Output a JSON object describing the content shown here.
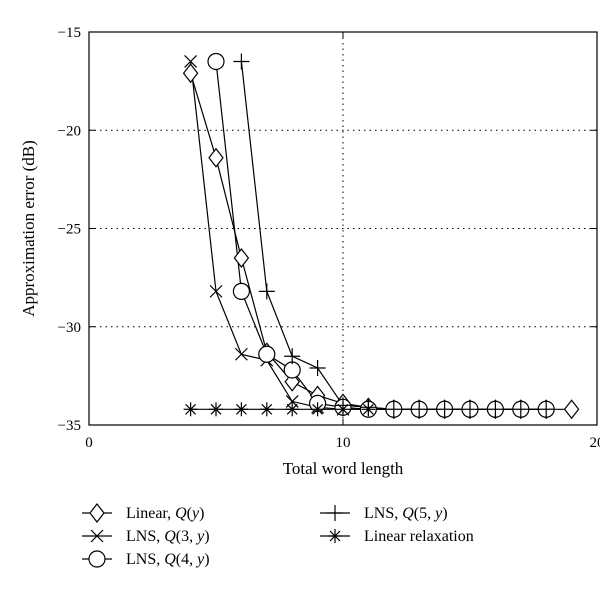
{
  "chart_data": {
    "type": "line",
    "xlabel": "Total word length",
    "ylabel": "Approximation error (dB)",
    "xlim": [
      0,
      20
    ],
    "ylim": [
      -35,
      -15
    ],
    "xticks": [
      "0",
      "10",
      "20"
    ],
    "yticks": [
      "−15",
      "−20",
      "−25",
      "−30",
      "−35"
    ],
    "grid": "dotted",
    "legend_position": "bottom",
    "series": [
      {
        "key": "linear_q",
        "name": "Linear, Q(y)",
        "legend_prefix": "Linear, ",
        "legend_q": "Q",
        "legend_args": "(",
        "legend_var": "y",
        "legend_tail": ")",
        "marker": "diamond",
        "x": [
          4,
          5,
          6,
          7,
          8,
          9,
          10,
          11,
          12,
          13,
          14,
          15,
          16,
          17,
          18,
          19
        ],
        "y": [
          -17.1,
          -21.4,
          -26.5,
          -31.3,
          -32.8,
          -33.5,
          -33.9,
          -34.1,
          -34.2,
          -34.2,
          -34.2,
          -34.2,
          -34.2,
          -34.2,
          -34.2,
          -34.2
        ]
      },
      {
        "key": "lns_q3",
        "name": "LNS, Q(3, y)",
        "legend_prefix": "LNS, ",
        "legend_q": "Q",
        "legend_args": "(3, ",
        "legend_var": "y",
        "legend_tail": ")",
        "marker": "x",
        "x": [
          4,
          5,
          6,
          7,
          8,
          9,
          10,
          11,
          12,
          13,
          14,
          15,
          16,
          17,
          18
        ],
        "y": [
          -16.5,
          -28.2,
          -31.4,
          -31.7,
          -33.8,
          -34.1,
          -34.2,
          -34.2,
          -34.2,
          -34.2,
          -34.2,
          -34.2,
          -34.2,
          -34.2,
          -34.2
        ]
      },
      {
        "key": "lns_q4",
        "name": "LNS, Q(4, y)",
        "legend_prefix": "LNS, ",
        "legend_q": "Q",
        "legend_args": "(4, ",
        "legend_var": "y",
        "legend_tail": ")",
        "marker": "circle",
        "x": [
          5,
          6,
          7,
          8,
          9,
          10,
          11,
          12,
          13,
          14,
          15,
          16,
          17,
          18
        ],
        "y": [
          -16.5,
          -28.2,
          -31.4,
          -32.2,
          -33.9,
          -34.1,
          -34.2,
          -34.2,
          -34.2,
          -34.2,
          -34.2,
          -34.2,
          -34.2,
          -34.2
        ]
      },
      {
        "key": "lns_q5",
        "name": "LNS, Q(5, y)",
        "legend_prefix": "LNS, ",
        "legend_q": "Q",
        "legend_args": "(5, ",
        "legend_var": "y",
        "legend_tail": ")",
        "marker": "plus",
        "x": [
          6,
          7,
          8,
          9,
          10,
          11,
          12,
          13,
          14,
          15,
          16,
          17,
          18
        ],
        "y": [
          -16.5,
          -28.2,
          -31.5,
          -32.1,
          -34.0,
          -34.1,
          -34.2,
          -34.2,
          -34.2,
          -34.2,
          -34.2,
          -34.2,
          -34.2
        ]
      },
      {
        "key": "linear_relax",
        "name": "Linear relaxation",
        "legend_prefix": "Linear relaxation",
        "legend_q": "",
        "legend_args": "",
        "legend_var": "",
        "legend_tail": "",
        "marker": "asterisk",
        "x": [
          4,
          5,
          6,
          7,
          8,
          9,
          10,
          11
        ],
        "y": [
          -34.2,
          -34.2,
          -34.2,
          -34.2,
          -34.2,
          -34.2,
          -34.2,
          -34.2
        ]
      }
    ]
  }
}
